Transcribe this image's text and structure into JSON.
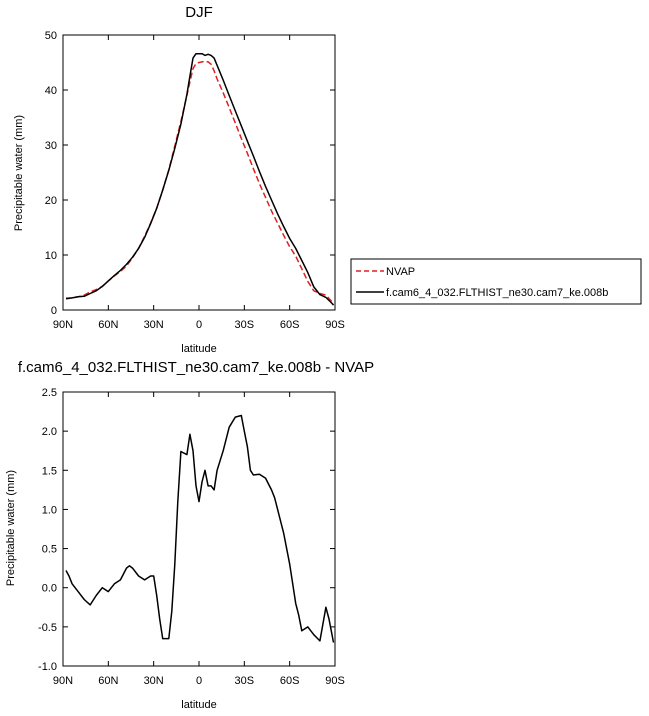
{
  "chart_data": [
    {
      "type": "line",
      "title": "DJF",
      "xlabel": "latitude",
      "ylabel": "Precipitable water (mm)",
      "xlim": [
        90,
        -90
      ],
      "ylim": [
        0,
        50
      ],
      "x_ticks": [
        {
          "value": 90,
          "label": "90N"
        },
        {
          "value": 60,
          "label": "60N"
        },
        {
          "value": 30,
          "label": "30N"
        },
        {
          "value": 0,
          "label": "0"
        },
        {
          "value": -30,
          "label": "30S"
        },
        {
          "value": -60,
          "label": "60S"
        },
        {
          "value": -90,
          "label": "90S"
        }
      ],
      "y_ticks": [
        0,
        10,
        20,
        30,
        40,
        50
      ],
      "legend": {
        "placement": "right"
      },
      "series": [
        {
          "name": "NVAP",
          "color": "#e02020",
          "dash": "dashed",
          "x": [
            88,
            84,
            80,
            76,
            72,
            68,
            64,
            60,
            56,
            52,
            48,
            44,
            40,
            36,
            32,
            28,
            24,
            20,
            16,
            12,
            8,
            6,
            4,
            2,
            0,
            -2,
            -4,
            -6,
            -8,
            -10,
            -12,
            -16,
            -20,
            -24,
            -28,
            -32,
            -36,
            -40,
            -44,
            -48,
            -52,
            -56,
            -60,
            -64,
            -68,
            -72,
            -76,
            -80,
            -84,
            -88,
            -89
          ],
          "values": [
            2.0,
            2.2,
            2.4,
            2.7,
            3.3,
            3.7,
            4.3,
            5.3,
            6.2,
            7.0,
            8.0,
            9.5,
            11.2,
            13.4,
            15.8,
            18.5,
            21.8,
            25.5,
            29.8,
            34.3,
            39.0,
            41.5,
            43.9,
            44.8,
            45.0,
            45.1,
            45.2,
            45.1,
            44.7,
            43.5,
            42.0,
            39.5,
            36.8,
            34.0,
            31.2,
            28.5,
            25.7,
            23.0,
            20.5,
            18.0,
            15.8,
            13.6,
            11.5,
            9.8,
            7.5,
            5.2,
            3.5,
            3.0,
            2.7,
            1.5,
            1.0
          ]
        },
        {
          "name": "f.cam6_4_032.FLTHIST_ne30.cam7_ke.008b",
          "color": "#000000",
          "dash": "solid",
          "x": [
            88,
            84,
            80,
            76,
            72,
            68,
            64,
            60,
            56,
            52,
            48,
            44,
            40,
            36,
            32,
            28,
            24,
            20,
            16,
            12,
            8,
            6,
            4,
            2,
            0,
            -2,
            -4,
            -6,
            -8,
            -10,
            -12,
            -16,
            -20,
            -24,
            -28,
            -32,
            -36,
            -40,
            -44,
            -48,
            -52,
            -56,
            -60,
            -64,
            -68,
            -72,
            -76,
            -80,
            -84,
            -88,
            -89
          ],
          "values": [
            2.1,
            2.2,
            2.4,
            2.5,
            3.0,
            3.5,
            4.3,
            5.3,
            6.3,
            7.2,
            8.3,
            9.6,
            11.2,
            13.2,
            15.7,
            18.5,
            21.8,
            25.4,
            29.4,
            33.8,
            39.2,
            42.5,
            45.8,
            46.6,
            46.6,
            46.6,
            46.3,
            46.5,
            46.3,
            45.8,
            44.5,
            41.8,
            39.0,
            36.2,
            33.5,
            30.7,
            28.0,
            25.2,
            22.5,
            20.0,
            17.5,
            15.2,
            13.0,
            11.2,
            9.0,
            6.8,
            4.2,
            2.8,
            2.3,
            1.2,
            0.9
          ]
        }
      ]
    },
    {
      "type": "line",
      "title": "f.cam6_4_032.FLTHIST_ne30.cam7_ke.008b - NVAP",
      "xlabel": "latitude",
      "ylabel": "Precipitable water (mm)",
      "xlim": [
        90,
        -90
      ],
      "ylim": [
        -1.0,
        2.5
      ],
      "x_ticks": [
        {
          "value": 90,
          "label": "90N"
        },
        {
          "value": 60,
          "label": "60N"
        },
        {
          "value": 30,
          "label": "30N"
        },
        {
          "value": 0,
          "label": "0"
        },
        {
          "value": -30,
          "label": "30S"
        },
        {
          "value": -60,
          "label": "60S"
        },
        {
          "value": -90,
          "label": "90S"
        }
      ],
      "y_ticks": [
        "-1.0",
        "-0.5",
        "0.0",
        "0.5",
        "1.0",
        "1.5",
        "2.0",
        "2.5"
      ],
      "series": [
        {
          "color": "#000000",
          "dash": "solid",
          "x": [
            88,
            86,
            84,
            80,
            76,
            72,
            68,
            64,
            60,
            56,
            52,
            48,
            46,
            44,
            40,
            36,
            32,
            30,
            28,
            26,
            24,
            22,
            20,
            18,
            16,
            14,
            12,
            10,
            8,
            6,
            4,
            2,
            0,
            -2,
            -4,
            -6,
            -8,
            -10,
            -12,
            -16,
            -20,
            -24,
            -28,
            -30,
            -32,
            -34,
            -36,
            -40,
            -44,
            -48,
            -50,
            -52,
            -56,
            -60,
            -62,
            -64,
            -66,
            -68,
            -72,
            -76,
            -80,
            -84,
            -86,
            -88,
            -89
          ],
          "values": [
            0.22,
            0.15,
            0.05,
            -0.05,
            -0.15,
            -0.22,
            -0.1,
            0.0,
            -0.05,
            0.05,
            0.1,
            0.25,
            0.28,
            0.25,
            0.15,
            0.1,
            0.15,
            0.15,
            -0.1,
            -0.4,
            -0.65,
            -0.65,
            -0.65,
            -0.3,
            0.3,
            1.1,
            1.74,
            1.72,
            1.7,
            1.96,
            1.75,
            1.3,
            1.1,
            1.35,
            1.5,
            1.3,
            1.3,
            1.25,
            1.5,
            1.75,
            2.05,
            2.18,
            2.2,
            2.0,
            1.8,
            1.5,
            1.44,
            1.45,
            1.4,
            1.25,
            1.15,
            1.0,
            0.7,
            0.3,
            0.05,
            -0.2,
            -0.35,
            -0.55,
            -0.5,
            -0.6,
            -0.68,
            -0.25,
            -0.4,
            -0.6,
            -0.7
          ]
        }
      ]
    }
  ]
}
